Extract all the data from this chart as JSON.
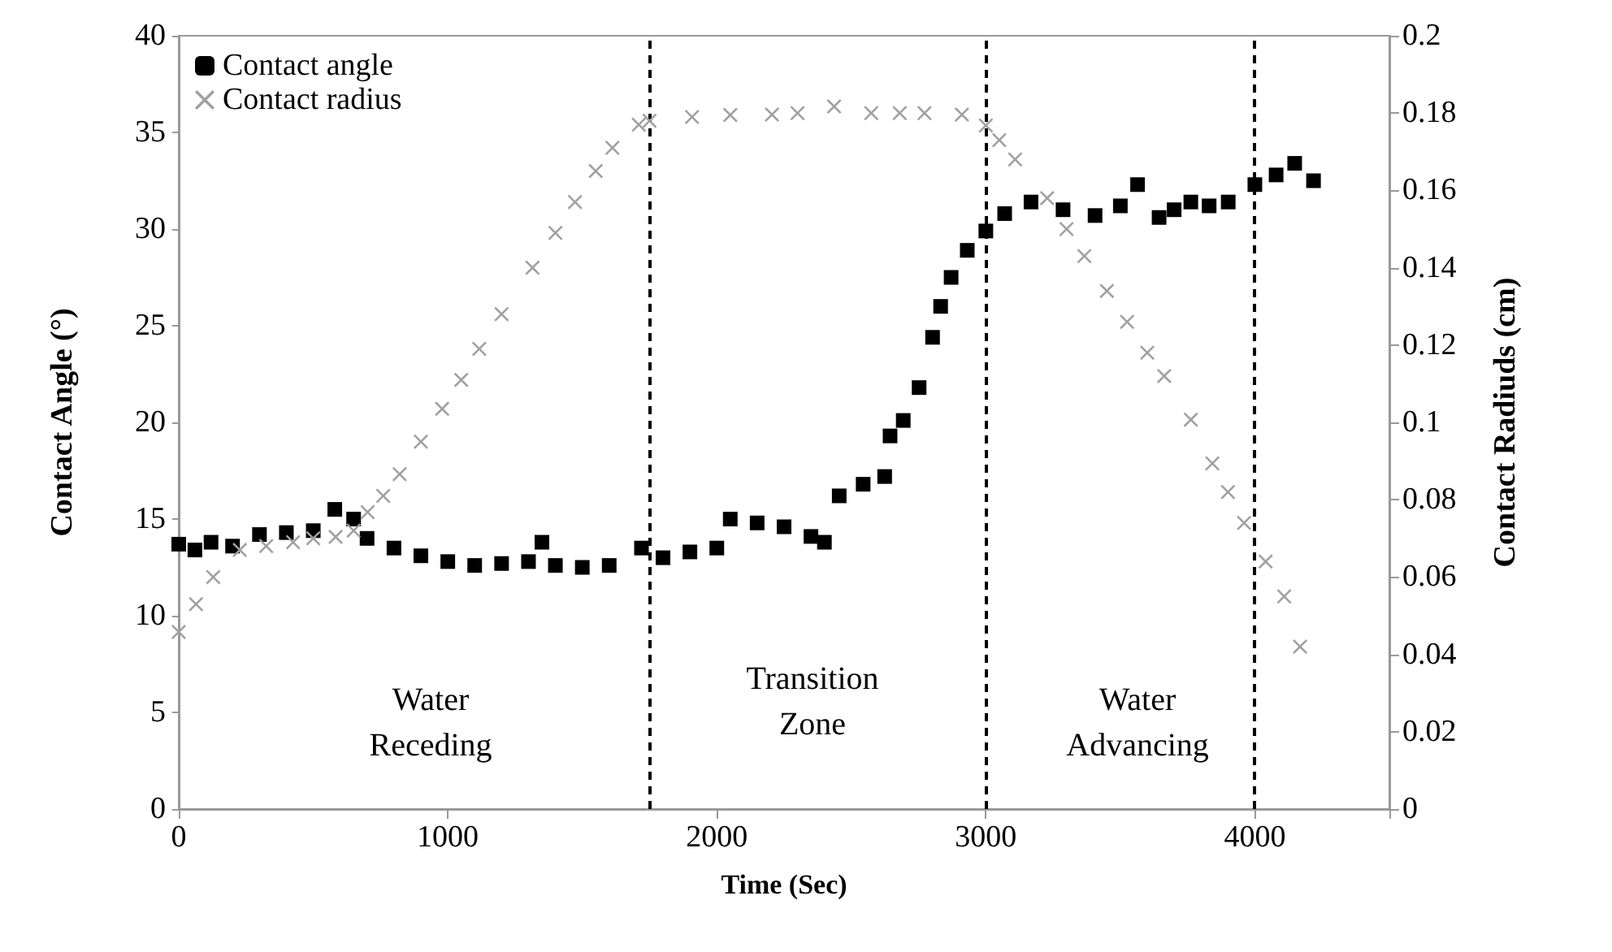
{
  "chart_data": {
    "type": "scatter",
    "xlabel": "Time (Sec)",
    "ylabel": "Contact Angle (°)",
    "y2label": "Contact Radiuds (cm)",
    "xlim": [
      0,
      4500
    ],
    "xticks": [
      0,
      1000,
      2000,
      3000,
      4000,
      {
        "value": 4500,
        "label": null
      }
    ],
    "ylim": [
      0,
      40
    ],
    "yticks": [
      0,
      5,
      10,
      15,
      20,
      25,
      30,
      35,
      40
    ],
    "y2lim": [
      0,
      0.2
    ],
    "y2ticks": [
      0,
      0.02,
      0.04,
      0.06,
      0.08,
      0.1,
      0.12,
      0.14,
      0.16,
      0.18,
      0.2
    ],
    "grid": false,
    "legend": "top left",
    "series": [
      {
        "name": "Contact angle",
        "color": "#000000",
        "marker": "square",
        "x": [
          0,
          60,
          120,
          200,
          300,
          400,
          500,
          580,
          650,
          700,
          800,
          900,
          1000,
          1100,
          1200,
          1300,
          1350,
          1400,
          1500,
          1600,
          1720,
          1800,
          1900,
          2000,
          2050,
          2150,
          2250,
          2350,
          2400,
          2455,
          2544,
          2624,
          2644,
          2693,
          2752,
          2802,
          2832,
          2871,
          2931,
          3000,
          3070,
          3168,
          3287,
          3406,
          3500,
          3564,
          3644,
          3700,
          3762,
          3830,
          3901,
          4000,
          4079,
          4148,
          4218
        ],
        "values": [
          13.7,
          13.4,
          13.8,
          13.6,
          14.2,
          14.3,
          14.4,
          15.5,
          15,
          14,
          13.5,
          13.1,
          12.8,
          12.6,
          12.7,
          12.8,
          13.8,
          12.6,
          12.5,
          12.6,
          13.5,
          13,
          13.3,
          13.5,
          15,
          14.8,
          14.6,
          14.1,
          13.8,
          16.2,
          16.8,
          17.2,
          19.3,
          20.1,
          21.8,
          24.4,
          26,
          27.5,
          28.9,
          29.9,
          30.8,
          31.4,
          31,
          30.7,
          31.2,
          32.3,
          30.6,
          31,
          31.4,
          31.2,
          31.4,
          32.3,
          32.8,
          33.4,
          32.5
        ]
      },
      {
        "name": "Contact radius",
        "color": "#a0a0a0",
        "marker": "cross",
        "axis": "y2",
        "x": [
          0,
          64,
          128,
          227,
          325,
          425,
          500,
          583,
          650,
          702,
          760,
          821,
          900,
          979,
          1050,
          1117,
          1200,
          1315,
          1400,
          1473,
          1550,
          1612,
          1710,
          1750,
          1908,
          2050,
          2205,
          2300,
          2436,
          2574,
          2680,
          2772,
          2911,
          3000,
          3050,
          3109,
          3228,
          3300,
          3366,
          3450,
          3525,
          3600,
          3663,
          3762,
          3842,
          3900,
          3960,
          4040,
          4109,
          4168
        ],
        "values": [
          0.0458,
          0.053,
          0.06,
          0.067,
          0.068,
          0.069,
          0.07,
          0.0704,
          0.072,
          0.0768,
          0.081,
          0.0866,
          0.095,
          0.1035,
          0.111,
          0.119,
          0.128,
          0.14,
          0.149,
          0.157,
          0.165,
          0.171,
          0.177,
          0.178,
          0.179,
          0.1795,
          0.1796,
          0.18,
          0.1817,
          0.18,
          0.18,
          0.18,
          0.1796,
          0.1768,
          0.173,
          0.168,
          0.158,
          0.15,
          0.143,
          0.134,
          0.126,
          0.118,
          0.112,
          0.1007,
          0.0894,
          0.082,
          0.074,
          0.064,
          0.055,
          0.042
        ]
      }
    ],
    "ref_lines": [
      {
        "axis": "x",
        "value": 1750,
        "label": null,
        "color": "#000000",
        "line_style": "dashed"
      },
      {
        "axis": "x",
        "value": 3000,
        "label": null,
        "color": "#000000",
        "line_style": "dashed"
      },
      {
        "axis": "x",
        "value": 4000,
        "label": null,
        "color": "#000000",
        "line_style": "dashed"
      }
    ],
    "annotations": [
      "Water\nReceding",
      "Transition\nZone",
      "Water\nAdvancing"
    ]
  }
}
